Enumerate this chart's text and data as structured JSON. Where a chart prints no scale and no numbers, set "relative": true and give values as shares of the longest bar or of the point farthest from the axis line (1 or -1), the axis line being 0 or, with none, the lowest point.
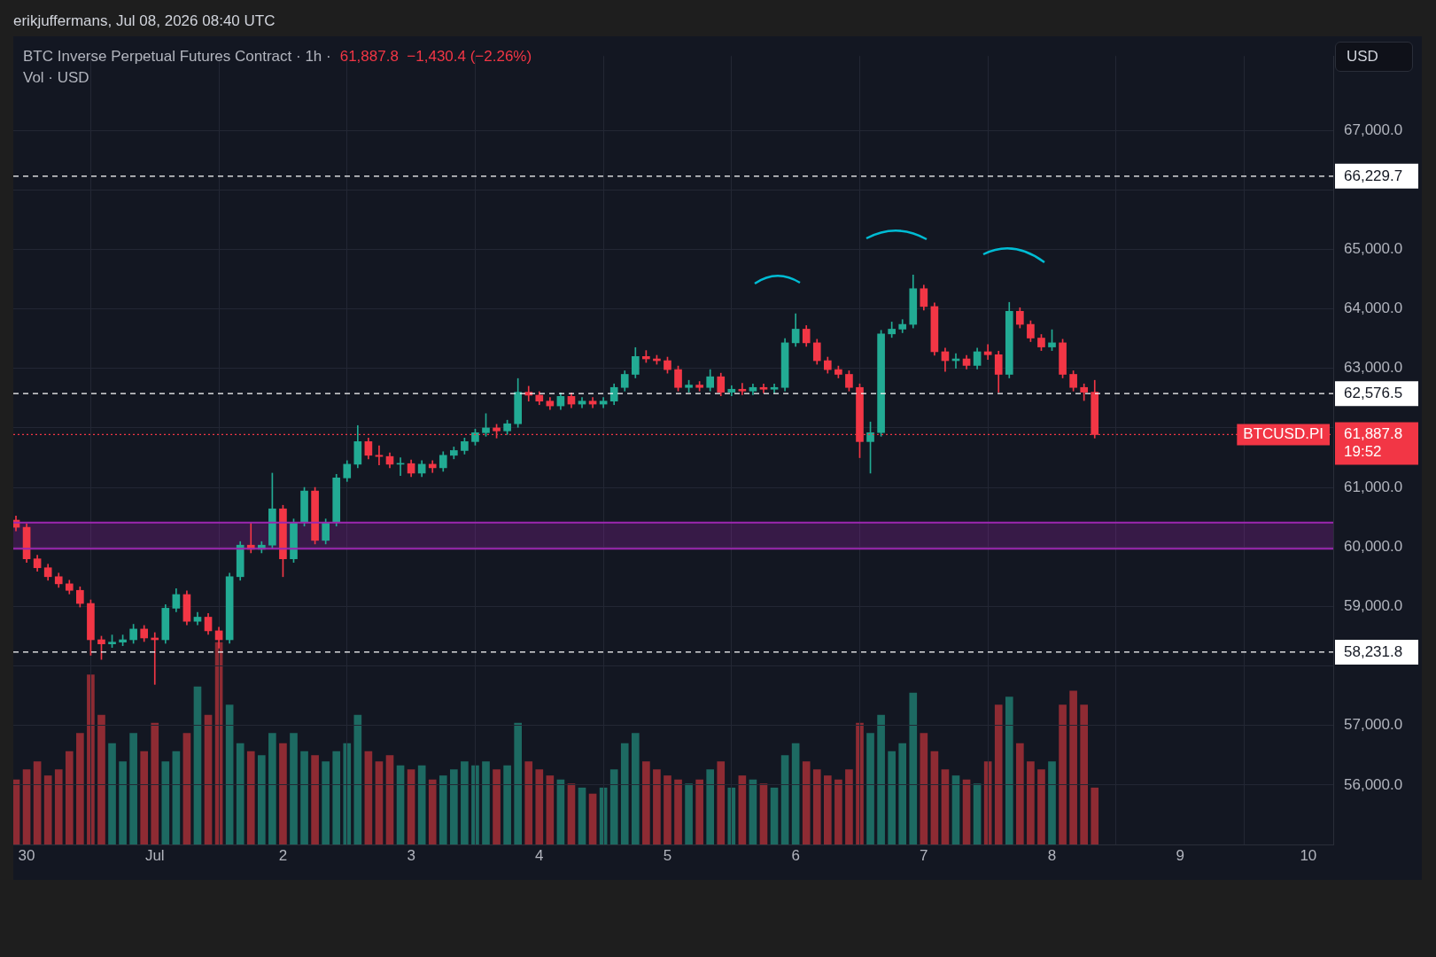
{
  "chart_data": [
    {
      "type": "candlestick",
      "title": "BTC Inverse Perpetual Futures Contract · 1h ·",
      "subtitle": "61,887.8  −1,430.4 (−2.26%)",
      "annotations": [
        "erikjuffermans, Jul 08, 2026 08:40 UTC",
        "USD",
        "19:52",
        {
          "text": "BTCUSD.PI",
          "y": 61887.8
        }
      ],
      "x": [
        "2026-06-29T22:00",
        "2026-06-30T00:00",
        "2026-06-30T02:00",
        "2026-06-30T04:00",
        "2026-06-30T06:00",
        "2026-06-30T08:00",
        "2026-06-30T10:00",
        "2026-06-30T12:00",
        "2026-06-30T14:00",
        "2026-06-30T16:00",
        "2026-06-30T18:00",
        "2026-06-30T20:00",
        "2026-06-30T22:00",
        "2026-07-01T00:00",
        "2026-07-01T02:00",
        "2026-07-01T04:00",
        "2026-07-01T06:00",
        "2026-07-01T08:00",
        "2026-07-01T10:00",
        "2026-07-01T12:00",
        "2026-07-01T14:00",
        "2026-07-01T16:00",
        "2026-07-01T18:00",
        "2026-07-01T20:00",
        "2026-07-01T22:00",
        "2026-07-02T00:00",
        "2026-07-02T02:00",
        "2026-07-02T04:00",
        "2026-07-02T06:00",
        "2026-07-02T08:00",
        "2026-07-02T10:00",
        "2026-07-02T12:00",
        "2026-07-02T14:00",
        "2026-07-02T16:00",
        "2026-07-02T18:00",
        "2026-07-02T20:00",
        "2026-07-02T22:00",
        "2026-07-03T00:00",
        "2026-07-03T02:00",
        "2026-07-03T04:00",
        "2026-07-03T06:00",
        "2026-07-03T08:00",
        "2026-07-03T10:00",
        "2026-07-03T12:00",
        "2026-07-03T14:00",
        "2026-07-03T16:00",
        "2026-07-03T18:00",
        "2026-07-03T20:00",
        "2026-07-03T22:00",
        "2026-07-04T00:00",
        "2026-07-04T02:00",
        "2026-07-04T04:00",
        "2026-07-04T06:00",
        "2026-07-04T08:00",
        "2026-07-04T10:00",
        "2026-07-04T12:00",
        "2026-07-04T14:00",
        "2026-07-04T16:00",
        "2026-07-04T18:00",
        "2026-07-04T20:00",
        "2026-07-04T22:00",
        "2026-07-05T00:00",
        "2026-07-05T02:00",
        "2026-07-05T04:00",
        "2026-07-05T06:00",
        "2026-07-05T08:00",
        "2026-07-05T10:00",
        "2026-07-05T12:00",
        "2026-07-05T14:00",
        "2026-07-05T16:00",
        "2026-07-05T18:00",
        "2026-07-05T20:00",
        "2026-07-05T22:00",
        "2026-07-06T00:00",
        "2026-07-06T02:00",
        "2026-07-06T04:00",
        "2026-07-06T06:00",
        "2026-07-06T08:00",
        "2026-07-06T10:00",
        "2026-07-06T12:00",
        "2026-07-06T14:00",
        "2026-07-06T16:00",
        "2026-07-06T18:00",
        "2026-07-06T20:00",
        "2026-07-06T22:00",
        "2026-07-07T00:00",
        "2026-07-07T02:00",
        "2026-07-07T04:00",
        "2026-07-07T06:00",
        "2026-07-07T08:00",
        "2026-07-07T10:00",
        "2026-07-07T12:00",
        "2026-07-07T14:00",
        "2026-07-07T16:00",
        "2026-07-07T18:00",
        "2026-07-07T20:00",
        "2026-07-07T22:00",
        "2026-07-08T00:00",
        "2026-07-08T02:00",
        "2026-07-08T04:00",
        "2026-07-08T06:00",
        "2026-07-08T08:00"
      ],
      "series": [
        {
          "type": "candlestick",
          "ohlc": [
            [
              60450,
              60520,
              60270,
              60330
            ],
            [
              60330,
              60390,
              59740,
              59800
            ],
            [
              59800,
              59860,
              59590,
              59650
            ],
            [
              59650,
              59710,
              59440,
              59500
            ],
            [
              59500,
              59560,
              59320,
              59380
            ],
            [
              59380,
              59440,
              59210,
              59270
            ],
            [
              59270,
              59330,
              58990,
              59050
            ],
            [
              59050,
              59110,
              58180,
              58440
            ],
            [
              58440,
              58500,
              58110,
              58370
            ],
            [
              58370,
              58520,
              58310,
              58400
            ],
            [
              58400,
              58520,
              58340,
              58440
            ],
            [
              58440,
              58700,
              58380,
              58620
            ],
            [
              58620,
              58680,
              58410,
              58470
            ],
            [
              58470,
              58560,
              57690,
              58440
            ],
            [
              58440,
              59030,
              58380,
              58970
            ],
            [
              58970,
              59300,
              58910,
              59200
            ],
            [
              59200,
              59260,
              58690,
              58750
            ],
            [
              58750,
              58900,
              58690,
              58820
            ],
            [
              58820,
              58880,
              58530,
              58590
            ],
            [
              58590,
              58650,
              58300,
              58440
            ],
            [
              58440,
              59560,
              58380,
              59500
            ],
            [
              59500,
              60090,
              59440,
              60030
            ],
            [
              60030,
              60400,
              59900,
              59960
            ],
            [
              59960,
              60090,
              59900,
              60030
            ],
            [
              60030,
              61240,
              59970,
              60640
            ],
            [
              60640,
              60700,
              59500,
              59800
            ],
            [
              59800,
              60470,
              59740,
              60410
            ],
            [
              60410,
              61000,
              60350,
              60940
            ],
            [
              60940,
              61000,
              60050,
              60110
            ],
            [
              60110,
              60470,
              60050,
              60410
            ],
            [
              60410,
              61220,
              60350,
              61160
            ],
            [
              61160,
              61450,
              61100,
              61390
            ],
            [
              61390,
              62040,
              61330,
              61770
            ],
            [
              61770,
              61830,
              61480,
              61540
            ],
            [
              61540,
              61700,
              61380,
              61520
            ],
            [
              61520,
              61580,
              61330,
              61390
            ],
            [
              61390,
              61500,
              61200,
              61400
            ],
            [
              61400,
              61460,
              61180,
              61240
            ],
            [
              61240,
              61450,
              61180,
              61390
            ],
            [
              61390,
              61450,
              61250,
              61330
            ],
            [
              61330,
              61600,
              61270,
              61540
            ],
            [
              61540,
              61680,
              61480,
              61620
            ],
            [
              61620,
              61830,
              61560,
              61770
            ],
            [
              61770,
              61980,
              61710,
              61920
            ],
            [
              61920,
              62240,
              61860,
              62000
            ],
            [
              62000,
              62060,
              61830,
              61950
            ],
            [
              61950,
              62130,
              61890,
              62070
            ],
            [
              62070,
              62830,
              62010,
              62600
            ],
            [
              62600,
              62700,
              62450,
              62550
            ],
            [
              62550,
              62610,
              62390,
              62450
            ],
            [
              62450,
              62510,
              62310,
              62370
            ],
            [
              62370,
              62590,
              62310,
              62530
            ],
            [
              62530,
              62590,
              62340,
              62400
            ],
            [
              62400,
              62510,
              62340,
              62450
            ],
            [
              62450,
              62510,
              62340,
              62400
            ],
            [
              62400,
              62510,
              62340,
              62450
            ],
            [
              62450,
              62740,
              62390,
              62680
            ],
            [
              62680,
              62960,
              62620,
              62900
            ],
            [
              62900,
              63350,
              62840,
              63200
            ],
            [
              63200,
              63300,
              63100,
              63160
            ],
            [
              63160,
              63220,
              63070,
              63130
            ],
            [
              63130,
              63190,
              62920,
              62980
            ],
            [
              62980,
              63040,
              62620,
              62680
            ],
            [
              62680,
              62800,
              62600,
              62720
            ],
            [
              62720,
              62780,
              62620,
              62680
            ],
            [
              62680,
              62980,
              62620,
              62860
            ],
            [
              62860,
              62920,
              62540,
              62600
            ],
            [
              62600,
              62710,
              62540,
              62650
            ],
            [
              62650,
              62750,
              62560,
              62620
            ],
            [
              62620,
              62740,
              62560,
              62680
            ],
            [
              62680,
              62740,
              62590,
              62650
            ],
            [
              62650,
              62740,
              62590,
              62680
            ],
            [
              62680,
              63500,
              62620,
              63430
            ],
            [
              63430,
              63920,
              63370,
              63660
            ],
            [
              63660,
              63720,
              63370,
              63430
            ],
            [
              63430,
              63490,
              63070,
              63130
            ],
            [
              63130,
              63190,
              62920,
              62980
            ],
            [
              62980,
              63040,
              62840,
              62900
            ],
            [
              62900,
              62960,
              62620,
              62680
            ],
            [
              62680,
              62740,
              61500,
              61770
            ],
            [
              61770,
              62100,
              61240,
              61920
            ],
            [
              61920,
              63640,
              61860,
              63580
            ],
            [
              63580,
              63780,
              63520,
              63660
            ],
            [
              63660,
              63820,
              63600,
              63740
            ],
            [
              63740,
              64570,
              63680,
              64340
            ],
            [
              64340,
              64400,
              63980,
              64040
            ],
            [
              64040,
              64100,
              63220,
              63280
            ],
            [
              63280,
              63340,
              62950,
              63130
            ],
            [
              63130,
              63250,
              63000,
              63160
            ],
            [
              63160,
              63220,
              62990,
              63050
            ],
            [
              63050,
              63340,
              62990,
              63280
            ],
            [
              63280,
              63400,
              63150,
              63230
            ],
            [
              63230,
              63290,
              62600,
              62900
            ],
            [
              62900,
              64110,
              62840,
              63960
            ],
            [
              63960,
              64020,
              63680,
              63740
            ],
            [
              63740,
              63800,
              63450,
              63510
            ],
            [
              63510,
              63570,
              63300,
              63360
            ],
            [
              63360,
              63650,
              63300,
              63430
            ],
            [
              63430,
              63490,
              62840,
              62900
            ],
            [
              62900,
              62960,
              62620,
              62680
            ],
            [
              62680,
              62740,
              62460,
              62600
            ],
            [
              62600,
              62800,
              61830,
              61887.8
            ]
          ],
          "colors": [
            "#f23645",
            "#f23645",
            "#f23645",
            "#f23645",
            "#f23645",
            "#f23645",
            "#f23645",
            "#f23645",
            "#f23645",
            "#22ab94",
            "#22ab94",
            "#22ab94",
            "#f23645",
            "#f23645",
            "#22ab94",
            "#22ab94",
            "#f23645",
            "#22ab94",
            "#f23645",
            "#f23645",
            "#22ab94",
            "#22ab94",
            "#f23645",
            "#22ab94",
            "#22ab94",
            "#f23645",
            "#22ab94",
            "#22ab94",
            "#f23645",
            "#22ab94",
            "#22ab94",
            "#22ab94",
            "#22ab94",
            "#f23645",
            "#f23645",
            "#f23645",
            "#22ab94",
            "#f23645",
            "#22ab94",
            "#f23645",
            "#22ab94",
            "#22ab94",
            "#22ab94",
            "#22ab94",
            "#22ab94",
            "#f23645",
            "#22ab94",
            "#22ab94",
            "#f23645",
            "#f23645",
            "#f23645",
            "#22ab94",
            "#f23645",
            "#22ab94",
            "#f23645",
            "#22ab94",
            "#22ab94",
            "#22ab94",
            "#22ab94",
            "#f23645",
            "#f23645",
            "#f23645",
            "#f23645",
            "#22ab94",
            "#f23645",
            "#22ab94",
            "#f23645",
            "#22ab94",
            "#f23645",
            "#22ab94",
            "#f23645",
            "#22ab94",
            "#22ab94",
            "#22ab94",
            "#f23645",
            "#f23645",
            "#f23645",
            "#f23645",
            "#f23645",
            "#f23645",
            "#22ab94",
            "#22ab94",
            "#22ab94",
            "#22ab94",
            "#22ab94",
            "#f23645",
            "#f23645",
            "#f23645",
            "#22ab94",
            "#f23645",
            "#22ab94",
            "#f23645",
            "#f23645",
            "#22ab94",
            "#f23645",
            "#f23645",
            "#f23645",
            "#22ab94",
            "#f23645",
            "#f23645",
            "#f23645",
            "#f23645"
          ]
        }
      ],
      "xlim": [
        "2026-06-29T21:30",
        "2026-07-10T04:40"
      ],
      "xticks": [
        {
          "value": "2026-06-30",
          "label": "30"
        },
        {
          "value": "2026-07-01",
          "label": "Jul"
        },
        {
          "value": "2026-07-02",
          "label": "2"
        },
        {
          "value": "2026-07-03",
          "label": "3"
        },
        {
          "value": "2026-07-04",
          "label": "4"
        },
        {
          "value": "2026-07-05",
          "label": "5"
        },
        {
          "value": "2026-07-06",
          "label": "6"
        },
        {
          "value": "2026-07-07",
          "label": "7"
        },
        {
          "value": "2026-07-08",
          "label": "8"
        },
        {
          "value": "2026-07-09",
          "label": "9"
        },
        {
          "value": "2026-07-10",
          "label": "10"
        }
      ],
      "ylim": [
        55000,
        68250
      ],
      "yticks": [
        {
          "value": 56000,
          "label": "56,000.0"
        },
        {
          "value": 57000,
          "label": "57,000.0"
        },
        {
          "value": 58000,
          "label": null
        },
        {
          "value": 59000,
          "label": "59,000.0"
        },
        {
          "value": 60000,
          "label": "60,000.0"
        },
        {
          "value": 61000,
          "label": "61,000.0"
        },
        {
          "value": 62000,
          "label": null
        },
        {
          "value": 63000,
          "label": "63,000.0"
        },
        {
          "value": 64000,
          "label": "64,000.0"
        },
        {
          "value": 65000,
          "label": "65,000.0"
        },
        {
          "value": 66000,
          "label": null
        },
        {
          "value": 67000,
          "label": "67,000.0"
        }
      ],
      "ref_lines": [
        {
          "axis": "y",
          "value": 66229.7,
          "label": "66,229.7",
          "color": "#ffffff",
          "line_style": "dashed"
        },
        {
          "axis": "y",
          "value": 62576.5,
          "label": "62,576.5",
          "color": "#ffffff",
          "line_style": "dashed"
        },
        {
          "axis": "y",
          "value": 58231.8,
          "label": "58,231.8",
          "color": "#ffffff",
          "line_style": "dashed"
        },
        {
          "axis": "y",
          "value": 61887.8,
          "label": "61,887.8",
          "color": "#f23645",
          "line_style": "dotted"
        },
        {
          "axis": "y",
          "value": 60410,
          "color": "#9c27b0",
          "line_style": "solid"
        },
        {
          "axis": "y",
          "value": 59970,
          "color": "#9c27b0",
          "line_style": "solid"
        }
      ],
      "bands": [
        {
          "axis": "y",
          "from": 59970,
          "to": 60410,
          "color": "#9c27b0"
        }
      ],
      "grid": true
    },
    {
      "type": "bar",
      "relative": true,
      "legend": "top left",
      "x": [
        "2026-06-29T22:00",
        "2026-06-30T00:00",
        "2026-06-30T02:00",
        "2026-06-30T04:00",
        "2026-06-30T06:00",
        "2026-06-30T08:00",
        "2026-06-30T10:00",
        "2026-06-30T12:00",
        "2026-06-30T14:00",
        "2026-06-30T16:00",
        "2026-06-30T18:00",
        "2026-06-30T20:00",
        "2026-06-30T22:00",
        "2026-07-01T00:00",
        "2026-07-01T02:00",
        "2026-07-01T04:00",
        "2026-07-01T06:00",
        "2026-07-01T08:00",
        "2026-07-01T10:00",
        "2026-07-01T12:00",
        "2026-07-01T14:00",
        "2026-07-01T16:00",
        "2026-07-01T18:00",
        "2026-07-01T20:00",
        "2026-07-01T22:00",
        "2026-07-02T00:00",
        "2026-07-02T02:00",
        "2026-07-02T04:00",
        "2026-07-02T06:00",
        "2026-07-02T08:00",
        "2026-07-02T10:00",
        "2026-07-02T12:00",
        "2026-07-02T14:00",
        "2026-07-02T16:00",
        "2026-07-02T18:00",
        "2026-07-02T20:00",
        "2026-07-02T22:00",
        "2026-07-03T00:00",
        "2026-07-03T02:00",
        "2026-07-03T04:00",
        "2026-07-03T06:00",
        "2026-07-03T08:00",
        "2026-07-03T10:00",
        "2026-07-03T12:00",
        "2026-07-03T14:00",
        "2026-07-03T16:00",
        "2026-07-03T18:00",
        "2026-07-03T20:00",
        "2026-07-03T22:00",
        "2026-07-04T00:00",
        "2026-07-04T02:00",
        "2026-07-04T04:00",
        "2026-07-04T06:00",
        "2026-07-04T08:00",
        "2026-07-04T10:00",
        "2026-07-04T12:00",
        "2026-07-04T14:00",
        "2026-07-04T16:00",
        "2026-07-04T18:00",
        "2026-07-04T20:00",
        "2026-07-04T22:00",
        "2026-07-05T00:00",
        "2026-07-05T02:00",
        "2026-07-05T04:00",
        "2026-07-05T06:00",
        "2026-07-05T08:00",
        "2026-07-05T10:00",
        "2026-07-05T12:00",
        "2026-07-05T14:00",
        "2026-07-05T16:00",
        "2026-07-05T18:00",
        "2026-07-05T20:00",
        "2026-07-05T22:00",
        "2026-07-06T00:00",
        "2026-07-06T02:00",
        "2026-07-06T04:00",
        "2026-07-06T06:00",
        "2026-07-06T08:00",
        "2026-07-06T10:00",
        "2026-07-06T12:00",
        "2026-07-06T14:00",
        "2026-07-06T16:00",
        "2026-07-06T18:00",
        "2026-07-06T20:00",
        "2026-07-06T22:00",
        "2026-07-07T00:00",
        "2026-07-07T02:00",
        "2026-07-07T04:00",
        "2026-07-07T06:00",
        "2026-07-07T08:00",
        "2026-07-07T10:00",
        "2026-07-07T12:00",
        "2026-07-07T14:00",
        "2026-07-07T16:00",
        "2026-07-07T18:00",
        "2026-07-07T20:00",
        "2026-07-07T22:00",
        "2026-07-08T00:00",
        "2026-07-08T02:00",
        "2026-07-08T04:00",
        "2026-07-08T06:00",
        "2026-07-08T08:00"
      ],
      "xlim": [
        "2026-06-29T21:30",
        "2026-07-10T04:40"
      ],
      "series": [
        {
          "name": "Vol · USD",
          "values": [
            0.32,
            0.37,
            0.41,
            0.34,
            0.37,
            0.46,
            0.55,
            0.84,
            0.64,
            0.5,
            0.41,
            0.55,
            0.46,
            0.6,
            0.41,
            0.46,
            0.55,
            0.78,
            0.64,
            1,
            0.69,
            0.5,
            0.46,
            0.44,
            0.55,
            0.5,
            0.55,
            0.46,
            0.44,
            0.41,
            0.46,
            0.5,
            0.64,
            0.46,
            0.41,
            0.44,
            0.39,
            0.37,
            0.39,
            0.32,
            0.34,
            0.37,
            0.41,
            0.39,
            0.41,
            0.37,
            0.39,
            0.6,
            0.41,
            0.37,
            0.34,
            0.32,
            0.3,
            0.28,
            0.25,
            0.28,
            0.37,
            0.5,
            0.55,
            0.41,
            0.37,
            0.34,
            0.32,
            0.3,
            0.32,
            0.37,
            0.41,
            0.28,
            0.34,
            0.32,
            0.3,
            0.28,
            0.44,
            0.5,
            0.41,
            0.37,
            0.34,
            0.32,
            0.37,
            0.6,
            0.55,
            0.64,
            0.46,
            0.5,
            0.75,
            0.55,
            0.46,
            0.37,
            0.34,
            0.32,
            0.3,
            0.41,
            0.69,
            0.73,
            0.5,
            0.41,
            0.37,
            0.41,
            0.69,
            0.76,
            0.69,
            0.28
          ],
          "colors": [
            "#8e2b33",
            "#8e2b33",
            "#8e2b33",
            "#8e2b33",
            "#8e2b33",
            "#8e2b33",
            "#8e2b33",
            "#8e2b33",
            "#8e2b33",
            "#1d6a62",
            "#1d6a62",
            "#1d6a62",
            "#8e2b33",
            "#8e2b33",
            "#1d6a62",
            "#1d6a62",
            "#8e2b33",
            "#1d6a62",
            "#8e2b33",
            "#8e2b33",
            "#1d6a62",
            "#1d6a62",
            "#8e2b33",
            "#1d6a62",
            "#1d6a62",
            "#8e2b33",
            "#1d6a62",
            "#1d6a62",
            "#8e2b33",
            "#1d6a62",
            "#1d6a62",
            "#1d6a62",
            "#1d6a62",
            "#8e2b33",
            "#8e2b33",
            "#8e2b33",
            "#1d6a62",
            "#8e2b33",
            "#1d6a62",
            "#8e2b33",
            "#1d6a62",
            "#1d6a62",
            "#1d6a62",
            "#1d6a62",
            "#1d6a62",
            "#8e2b33",
            "#1d6a62",
            "#1d6a62",
            "#8e2b33",
            "#8e2b33",
            "#8e2b33",
            "#1d6a62",
            "#8e2b33",
            "#1d6a62",
            "#8e2b33",
            "#1d6a62",
            "#1d6a62",
            "#1d6a62",
            "#1d6a62",
            "#8e2b33",
            "#8e2b33",
            "#8e2b33",
            "#8e2b33",
            "#1d6a62",
            "#8e2b33",
            "#1d6a62",
            "#8e2b33",
            "#1d6a62",
            "#8e2b33",
            "#1d6a62",
            "#8e2b33",
            "#1d6a62",
            "#1d6a62",
            "#1d6a62",
            "#8e2b33",
            "#8e2b33",
            "#8e2b33",
            "#8e2b33",
            "#8e2b33",
            "#8e2b33",
            "#1d6a62",
            "#1d6a62",
            "#1d6a62",
            "#1d6a62",
            "#1d6a62",
            "#8e2b33",
            "#8e2b33",
            "#8e2b33",
            "#1d6a62",
            "#8e2b33",
            "#1d6a62",
            "#8e2b33",
            "#8e2b33",
            "#1d6a62",
            "#8e2b33",
            "#8e2b33",
            "#8e2b33",
            "#1d6a62",
            "#8e2b33",
            "#8e2b33",
            "#8e2b33",
            "#8e2b33"
          ]
        }
      ]
    }
  ]
}
